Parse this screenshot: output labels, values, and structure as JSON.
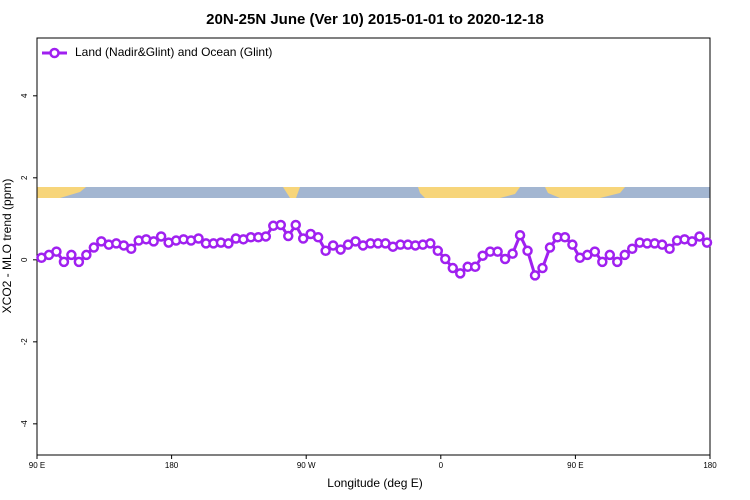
{
  "chart_data": {
    "type": "line",
    "title": "20N-25N June (Ver 10)   2015-01-01 to 2020-12-18",
    "x_label": "Longitude (deg E)",
    "y_label": "XCO2 - MLO trend (ppm)",
    "x": [
      93,
      98,
      103,
      108,
      113,
      118,
      123,
      128,
      133,
      138,
      143,
      148,
      153,
      158,
      163,
      168,
      173,
      178,
      183,
      188,
      193,
      198,
      203,
      208,
      213,
      218,
      223,
      228,
      233,
      238,
      243,
      248,
      253,
      258,
      263,
      268,
      273,
      278,
      283,
      288,
      293,
      298,
      303,
      308,
      313,
      318,
      323,
      328,
      333,
      338,
      343,
      348,
      353,
      358,
      363,
      368,
      373,
      378,
      383,
      388,
      393,
      398,
      403,
      408,
      413,
      418,
      423,
      428,
      433,
      438,
      443,
      448,
      453,
      458,
      463,
      468,
      473,
      478,
      483,
      488,
      493,
      498,
      503,
      508,
      513,
      518,
      523,
      528,
      533,
      538
    ],
    "series": [
      {
        "name": "Land (Nadir&Glint) and Ocean (Glint)",
        "color": "#a020f0",
        "values": [
          0.05,
          0.12,
          0.2,
          -0.05,
          0.12,
          -0.05,
          0.12,
          0.3,
          0.45,
          0.37,
          0.4,
          0.35,
          0.27,
          0.47,
          0.5,
          0.45,
          0.57,
          0.42,
          0.47,
          0.5,
          0.47,
          0.52,
          0.4,
          0.4,
          0.42,
          0.4,
          0.52,
          0.5,
          0.55,
          0.55,
          0.57,
          0.83,
          0.85,
          0.58,
          0.85,
          0.52,
          0.63,
          0.55,
          0.22,
          0.35,
          0.25,
          0.37,
          0.45,
          0.35,
          0.4,
          0.4,
          0.4,
          0.32,
          0.37,
          0.37,
          0.35,
          0.37,
          0.4,
          0.22,
          0.02,
          -0.2,
          -0.33,
          -0.17,
          -0.17,
          0.1,
          0.2,
          0.2,
          0.02,
          0.15,
          0.6,
          0.22,
          -0.38,
          -0.2,
          0.3,
          0.55,
          0.55,
          0.37,
          0.05,
          0.12,
          0.2,
          -0.05,
          0.12,
          -0.05,
          0.12,
          0.27,
          0.42,
          0.4,
          0.4,
          0.37,
          0.27,
          0.47,
          0.5,
          0.45,
          0.57,
          0.42
        ]
      }
    ],
    "xlim": [
      90,
      540
    ],
    "xticks": [
      {
        "value": 90,
        "label": "90 E"
      },
      {
        "value": 180,
        "label": "180"
      },
      {
        "value": 270,
        "label": "90 W"
      },
      {
        "value": 360,
        "label": "0"
      },
      {
        "value": 450,
        "label": "90 E"
      },
      {
        "value": 540,
        "label": "180"
      }
    ],
    "ylim": [
      -4.76,
      5.41
    ],
    "yticks": [
      -4,
      -2,
      0,
      2,
      4
    ],
    "legend": "upper left"
  }
}
